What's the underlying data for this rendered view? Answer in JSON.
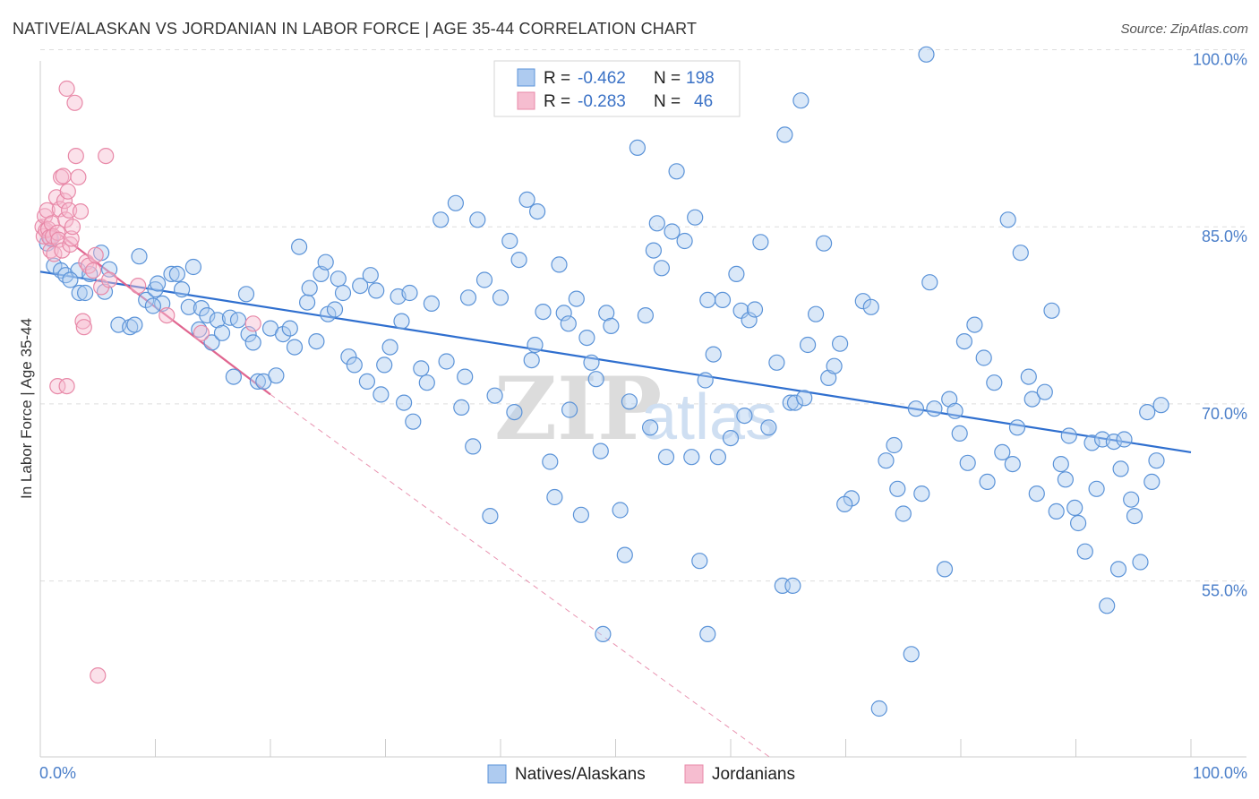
{
  "title": "NATIVE/ALASKAN VS JORDANIAN IN LABOR FORCE | AGE 35-44 CORRELATION CHART",
  "source": "Source: ZipAtlas.com",
  "colors": {
    "blue": "#5b93d8",
    "blue_fill": "#aecbf0",
    "blue_line": "#2f6fcf",
    "pink": "#e889a8",
    "pink_fill": "#f6bdd0",
    "pink_line": "#e06690",
    "grid": "#dddddd",
    "tick_text": "#4a7ec9"
  },
  "legend_box": {
    "rows": [
      {
        "r_label": "R =",
        "r_value": "-0.462",
        "n_label": "N =",
        "n_value": "198",
        "swatch": "blue"
      },
      {
        "r_label": "R =",
        "r_value": "-0.283",
        "n_label": "N =",
        "n_value": "46",
        "swatch": "pink"
      }
    ]
  },
  "watermark": {
    "zip": "ZIP",
    "atlas": "atlas"
  },
  "chart_data": {
    "type": "scatter",
    "title": "NATIVE/ALASKAN VS JORDANIAN IN LABOR FORCE | AGE 35-44 CORRELATION CHART",
    "xlabel": "",
    "ylabel": "In Labor Force | Age 35-44",
    "xlim": [
      0,
      100
    ],
    "ylim": [
      40,
      102
    ],
    "x_tick_labels": {
      "left": "0.0%",
      "right": "100.0%"
    },
    "y_ticks": [
      {
        "value": 100,
        "label": "100.0%"
      },
      {
        "value": 85,
        "label": "85.0%"
      },
      {
        "value": 70,
        "label": "70.0%"
      },
      {
        "value": 55,
        "label": "55.0%"
      }
    ],
    "grid": true,
    "legend_position": "bottom-center",
    "series": [
      {
        "name": "Natives/Alaskans",
        "color": "blue",
        "R": -0.462,
        "N": 198,
        "trend": {
          "x0": 0,
          "y0": 81.2,
          "x1": 100,
          "y1": 65.9
        },
        "points": [
          [
            0.6,
            83.6
          ],
          [
            1.2,
            81.7
          ],
          [
            1.8,
            81.3
          ],
          [
            2.2,
            80.9
          ],
          [
            3.3,
            81.3
          ],
          [
            3.4,
            79.4
          ],
          [
            4.3,
            81.0
          ],
          [
            5.3,
            82.8
          ],
          [
            5.6,
            79.5
          ],
          [
            6.0,
            81.4
          ],
          [
            6.8,
            76.7
          ],
          [
            7.8,
            76.5
          ],
          [
            8.2,
            76.7
          ],
          [
            8.6,
            82.5
          ],
          [
            9.2,
            78.8
          ],
          [
            10.0,
            79.7
          ],
          [
            10.2,
            80.2
          ],
          [
            10.6,
            78.5
          ],
          [
            11.4,
            81.0
          ],
          [
            11.9,
            81.0
          ],
          [
            12.3,
            79.7
          ],
          [
            12.9,
            78.2
          ],
          [
            13.3,
            81.6
          ],
          [
            14.0,
            78.1
          ],
          [
            14.5,
            77.5
          ],
          [
            14.9,
            75.2
          ],
          [
            15.4,
            77.1
          ],
          [
            15.8,
            76.0
          ],
          [
            16.5,
            77.3
          ],
          [
            16.8,
            72.3
          ],
          [
            17.2,
            77.1
          ],
          [
            17.9,
            79.3
          ],
          [
            18.1,
            75.9
          ],
          [
            18.9,
            71.9
          ],
          [
            19.4,
            71.9
          ],
          [
            20.0,
            76.4
          ],
          [
            20.5,
            72.4
          ],
          [
            21.1,
            75.9
          ],
          [
            21.7,
            76.4
          ],
          [
            22.1,
            74.8
          ],
          [
            22.5,
            83.3
          ],
          [
            23.2,
            78.6
          ],
          [
            23.4,
            79.8
          ],
          [
            24.0,
            75.3
          ],
          [
            24.4,
            81.0
          ],
          [
            25.0,
            77.6
          ],
          [
            25.6,
            78.0
          ],
          [
            25.9,
            80.6
          ],
          [
            26.3,
            79.4
          ],
          [
            26.8,
            74.0
          ],
          [
            27.3,
            73.3
          ],
          [
            27.8,
            80.0
          ],
          [
            28.4,
            71.9
          ],
          [
            28.7,
            80.9
          ],
          [
            29.2,
            79.6
          ],
          [
            29.6,
            70.8
          ],
          [
            29.9,
            73.3
          ],
          [
            30.4,
            74.8
          ],
          [
            31.1,
            79.1
          ],
          [
            31.6,
            70.1
          ],
          [
            32.1,
            79.4
          ],
          [
            32.4,
            68.5
          ],
          [
            33.1,
            73.0
          ],
          [
            33.6,
            71.8
          ],
          [
            34.0,
            78.5
          ],
          [
            34.8,
            85.6
          ],
          [
            35.3,
            73.6
          ],
          [
            36.1,
            87.0
          ],
          [
            36.6,
            69.7
          ],
          [
            37.2,
            79.0
          ],
          [
            37.6,
            66.4
          ],
          [
            38.0,
            85.6
          ],
          [
            38.6,
            80.5
          ],
          [
            39.1,
            60.5
          ],
          [
            39.5,
            70.7
          ],
          [
            40.0,
            79.0
          ],
          [
            40.8,
            83.8
          ],
          [
            41.2,
            69.3
          ],
          [
            41.6,
            82.2
          ],
          [
            42.3,
            87.3
          ],
          [
            42.7,
            73.7
          ],
          [
            43.2,
            86.3
          ],
          [
            43.7,
            77.8
          ],
          [
            44.3,
            65.1
          ],
          [
            44.7,
            62.1
          ],
          [
            45.1,
            81.8
          ],
          [
            45.5,
            77.7
          ],
          [
            45.9,
            76.8
          ],
          [
            46.6,
            78.9
          ],
          [
            47.0,
            60.6
          ],
          [
            47.5,
            75.6
          ],
          [
            47.9,
            73.5
          ],
          [
            48.3,
            72.1
          ],
          [
            48.7,
            66.0
          ],
          [
            49.2,
            77.7
          ],
          [
            49.6,
            76.6
          ],
          [
            50.4,
            61.0
          ],
          [
            50.8,
            57.2
          ],
          [
            51.2,
            70.2
          ],
          [
            51.9,
            91.7
          ],
          [
            52.6,
            77.5
          ],
          [
            53.3,
            83.0
          ],
          [
            53.6,
            85.3
          ],
          [
            54.0,
            81.5
          ],
          [
            54.4,
            65.5
          ],
          [
            54.9,
            84.6
          ],
          [
            55.3,
            89.7
          ],
          [
            56.0,
            83.8
          ],
          [
            56.6,
            65.5
          ],
          [
            56.9,
            85.8
          ],
          [
            57.3,
            56.7
          ],
          [
            58.0,
            78.8
          ],
          [
            58.5,
            74.2
          ],
          [
            58.9,
            65.5
          ],
          [
            59.3,
            78.8
          ],
          [
            60.0,
            67.1
          ],
          [
            60.5,
            81.0
          ],
          [
            60.9,
            77.9
          ],
          [
            61.6,
            77.1
          ],
          [
            62.1,
            78.0
          ],
          [
            62.6,
            83.7
          ],
          [
            63.3,
            68.0
          ],
          [
            64.0,
            73.5
          ],
          [
            64.7,
            92.8
          ],
          [
            65.2,
            70.1
          ],
          [
            65.6,
            70.1
          ],
          [
            66.1,
            95.7
          ],
          [
            66.7,
            75.0
          ],
          [
            67.4,
            77.6
          ],
          [
            68.1,
            83.6
          ],
          [
            68.5,
            72.2
          ],
          [
            69.0,
            73.2
          ],
          [
            69.5,
            75.1
          ],
          [
            70.5,
            62.0
          ],
          [
            71.5,
            78.7
          ],
          [
            72.2,
            78.2
          ],
          [
            72.9,
            44.2
          ],
          [
            73.5,
            65.2
          ],
          [
            74.5,
            62.8
          ],
          [
            75.0,
            60.7
          ],
          [
            75.7,
            48.8
          ],
          [
            76.1,
            69.6
          ],
          [
            76.6,
            62.4
          ],
          [
            77.3,
            80.3
          ],
          [
            77.7,
            69.6
          ],
          [
            78.6,
            56.0
          ],
          [
            79.0,
            70.4
          ],
          [
            79.5,
            69.4
          ],
          [
            80.3,
            75.3
          ],
          [
            80.6,
            65.0
          ],
          [
            81.2,
            76.7
          ],
          [
            82.0,
            73.9
          ],
          [
            82.3,
            63.4
          ],
          [
            82.9,
            71.8
          ],
          [
            83.6,
            65.9
          ],
          [
            84.1,
            85.6
          ],
          [
            84.5,
            64.9
          ],
          [
            85.2,
            82.8
          ],
          [
            85.9,
            72.3
          ],
          [
            86.2,
            70.4
          ],
          [
            86.6,
            62.4
          ],
          [
            87.3,
            71.0
          ],
          [
            87.9,
            77.9
          ],
          [
            88.3,
            60.9
          ],
          [
            88.7,
            64.9
          ],
          [
            89.1,
            63.6
          ],
          [
            89.4,
            67.3
          ],
          [
            90.2,
            59.9
          ],
          [
            90.8,
            57.5
          ],
          [
            91.4,
            66.7
          ],
          [
            91.8,
            62.8
          ],
          [
            92.3,
            67.0
          ],
          [
            92.7,
            52.9
          ],
          [
            93.3,
            66.8
          ],
          [
            93.7,
            56.0
          ],
          [
            94.2,
            67.0
          ],
          [
            94.8,
            61.9
          ],
          [
            95.1,
            60.5
          ],
          [
            95.6,
            56.6
          ],
          [
            96.2,
            69.3
          ],
          [
            96.6,
            63.4
          ],
          [
            97.0,
            65.2
          ],
          [
            97.4,
            69.9
          ],
          [
            0.9,
            84.0
          ],
          [
            2.6,
            80.5
          ],
          [
            3.9,
            79.4
          ],
          [
            9.8,
            78.3
          ],
          [
            13.8,
            76.3
          ],
          [
            18.5,
            75.2
          ],
          [
            24.8,
            82.0
          ],
          [
            31.4,
            77.0
          ],
          [
            36.9,
            72.3
          ],
          [
            43.0,
            75.0
          ],
          [
            46.0,
            69.5
          ],
          [
            53.0,
            68.0
          ],
          [
            57.8,
            72.0
          ],
          [
            61.2,
            69.0
          ],
          [
            66.4,
            70.5
          ],
          [
            69.9,
            61.5
          ],
          [
            74.2,
            66.5
          ],
          [
            79.9,
            67.5
          ],
          [
            84.9,
            68.0
          ],
          [
            89.9,
            61.2
          ],
          [
            93.9,
            64.5
          ],
          [
            77.0,
            99.6
          ],
          [
            64.5,
            54.6
          ],
          [
            65.4,
            54.6
          ],
          [
            58.0,
            50.5
          ],
          [
            48.9,
            50.5
          ]
        ]
      },
      {
        "name": "Jordanians",
        "color": "pink",
        "R": -0.283,
        "N": 46,
        "trend": {
          "x0": 0,
          "y0": 85.6,
          "x1": 20,
          "y1": 70.8
        },
        "trend_dashed": {
          "x0": 20,
          "y0": 70.8,
          "x1": 63.5,
          "y1": 40.0
        },
        "points": [
          [
            0.2,
            85.0
          ],
          [
            0.3,
            84.2
          ],
          [
            0.4,
            85.9
          ],
          [
            0.5,
            84.7
          ],
          [
            0.6,
            86.4
          ],
          [
            0.7,
            84.8
          ],
          [
            0.8,
            84.1
          ],
          [
            0.9,
            83.0
          ],
          [
            1.0,
            85.3
          ],
          [
            1.1,
            84.2
          ],
          [
            1.2,
            82.7
          ],
          [
            1.4,
            87.5
          ],
          [
            1.5,
            84.5
          ],
          [
            1.6,
            83.9
          ],
          [
            1.7,
            86.5
          ],
          [
            1.8,
            89.2
          ],
          [
            1.9,
            83.0
          ],
          [
            2.0,
            89.3
          ],
          [
            2.1,
            87.2
          ],
          [
            2.2,
            85.6
          ],
          [
            2.3,
            96.7
          ],
          [
            2.4,
            88.0
          ],
          [
            2.5,
            86.4
          ],
          [
            2.6,
            83.5
          ],
          [
            2.7,
            84.0
          ],
          [
            2.8,
            85.0
          ],
          [
            3.0,
            95.5
          ],
          [
            3.1,
            91.0
          ],
          [
            3.3,
            89.2
          ],
          [
            3.5,
            86.3
          ],
          [
            3.7,
            77.0
          ],
          [
            3.8,
            76.5
          ],
          [
            4.0,
            82.0
          ],
          [
            4.2,
            81.7
          ],
          [
            4.6,
            81.3
          ],
          [
            4.8,
            82.6
          ],
          [
            5.0,
            47.0
          ],
          [
            5.3,
            79.9
          ],
          [
            5.7,
            91.0
          ],
          [
            6.0,
            80.5
          ],
          [
            8.5,
            80.0
          ],
          [
            11.0,
            77.5
          ],
          [
            14.0,
            76.0
          ],
          [
            18.5,
            76.8
          ],
          [
            1.5,
            71.5
          ],
          [
            2.3,
            71.5
          ]
        ]
      }
    ]
  }
}
